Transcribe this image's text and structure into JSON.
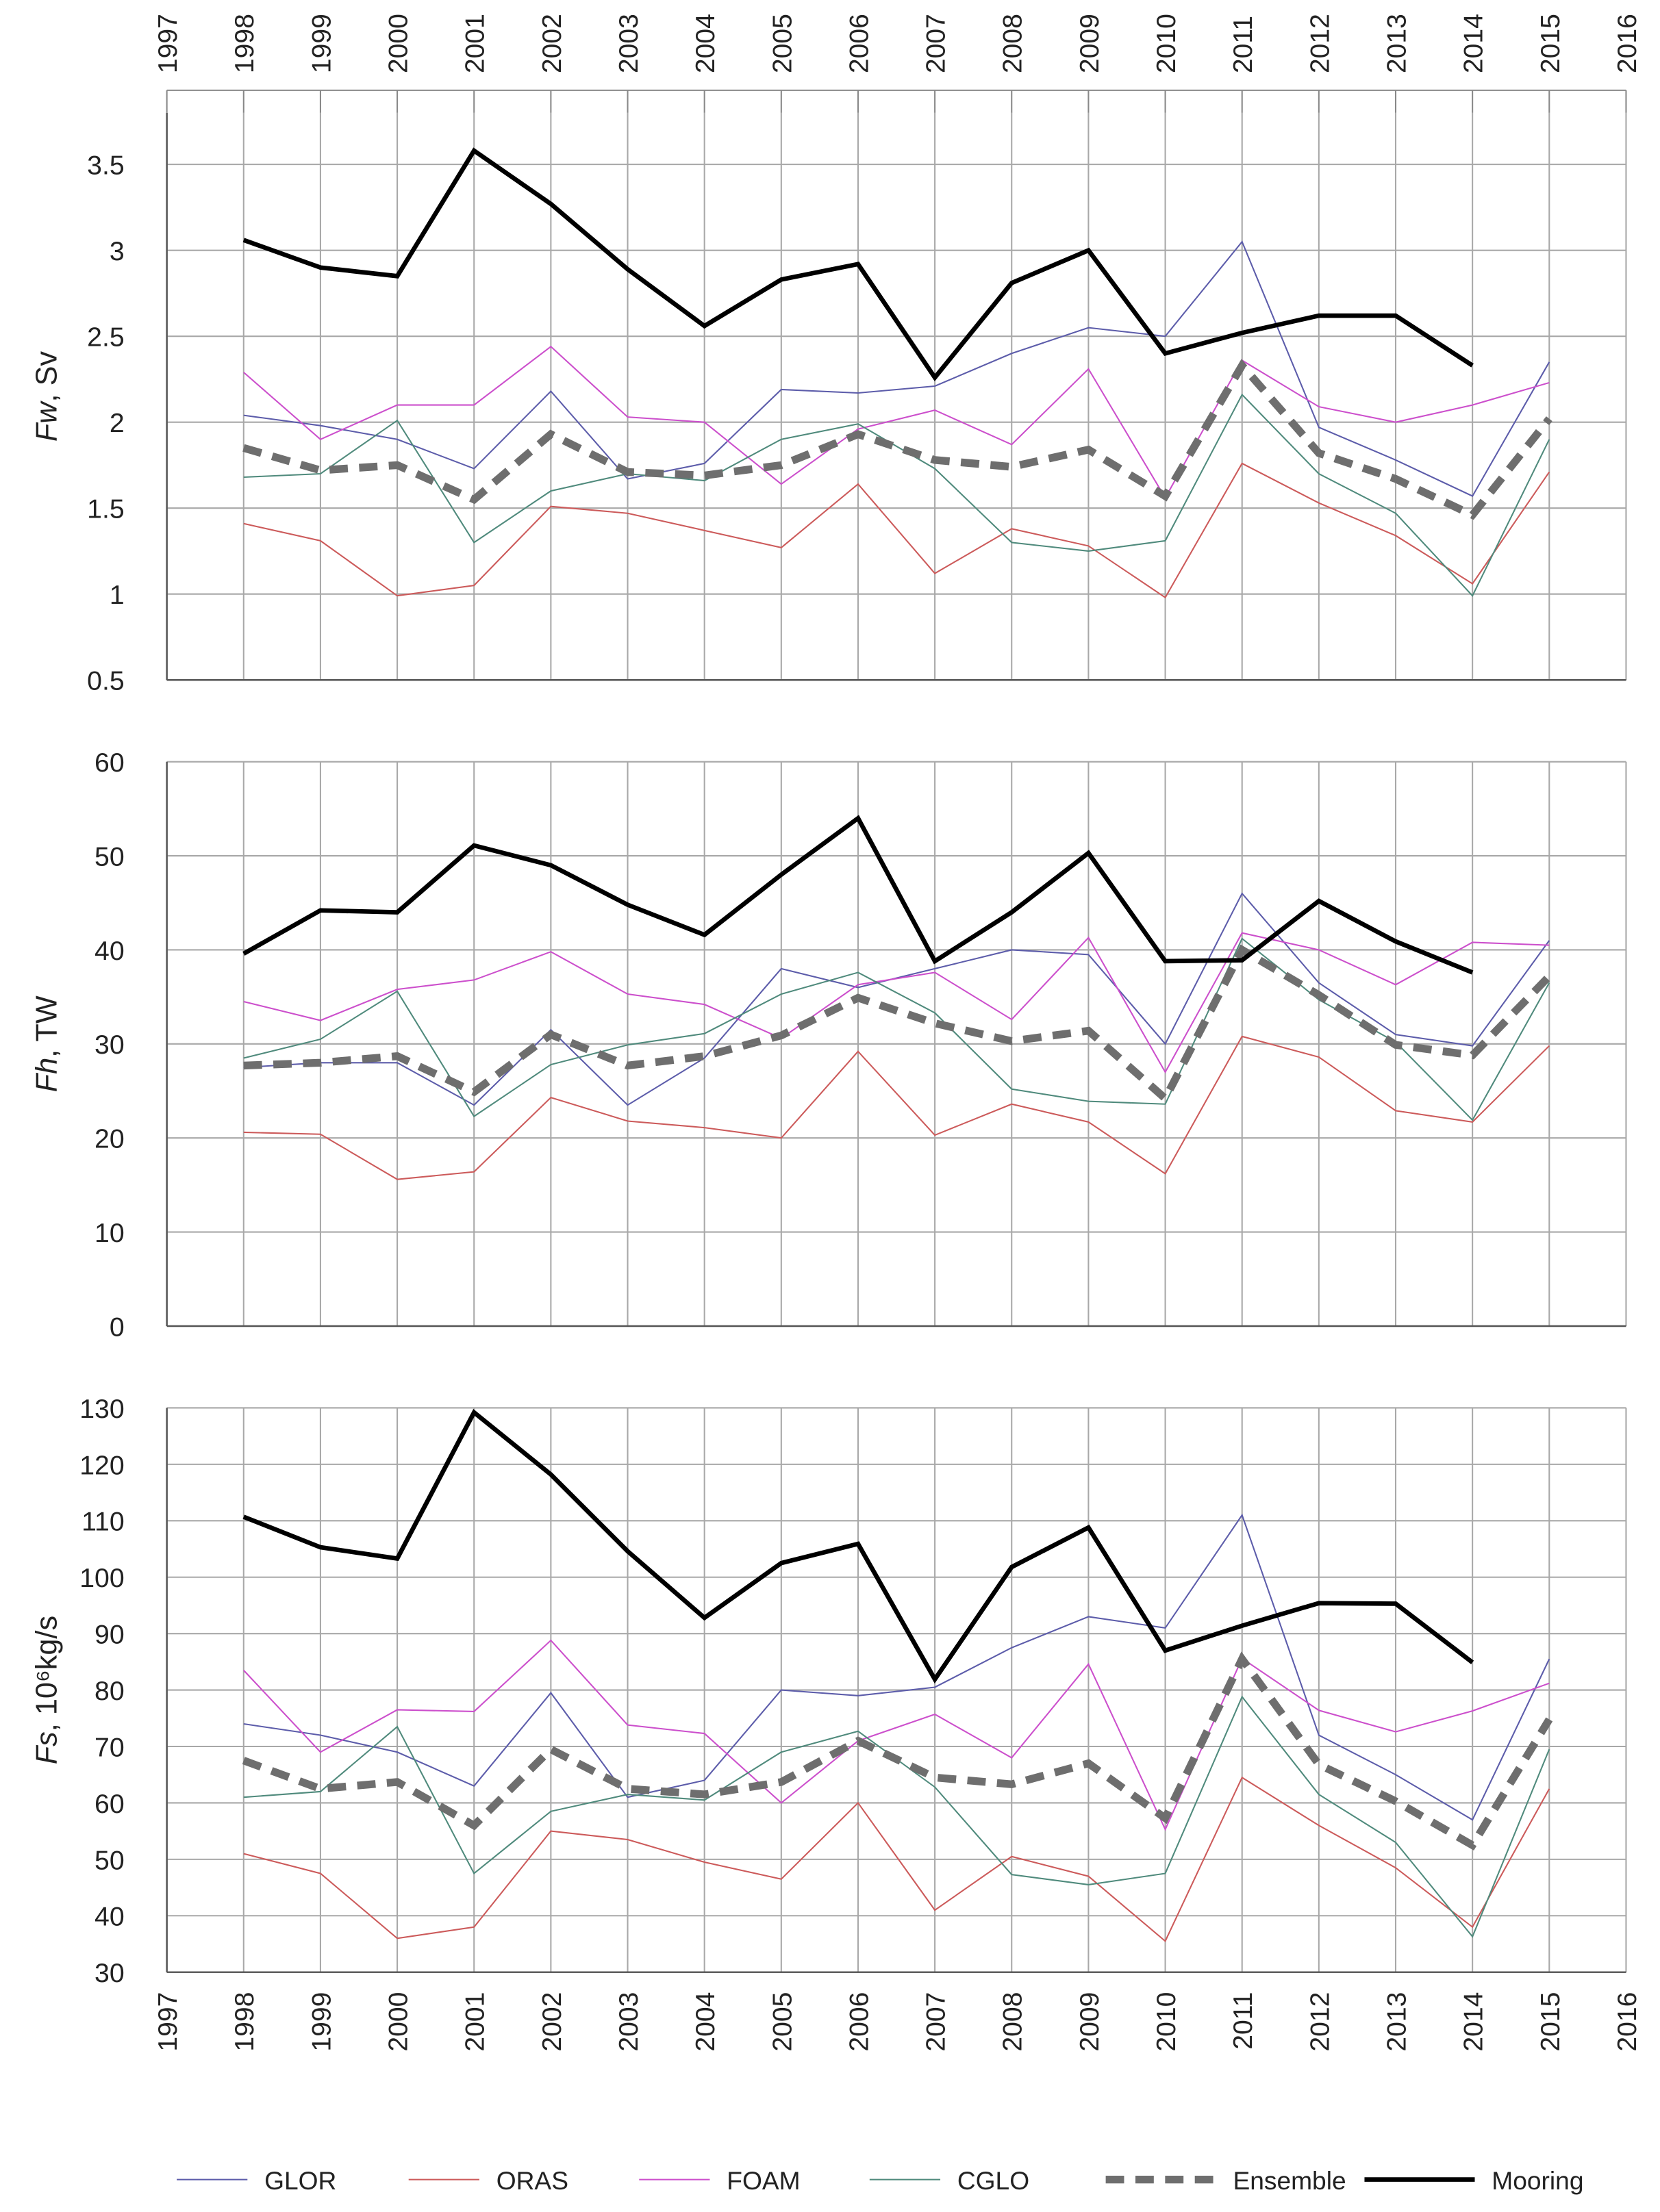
{
  "chart_data": [
    {
      "type": "line",
      "ylabel": "Fw, Sv",
      "x": [
        1998,
        1999,
        2000,
        2001,
        2002,
        2003,
        2004,
        2005,
        2006,
        2007,
        2008,
        2009,
        2010,
        2011,
        2012,
        2013,
        2014,
        2015
      ],
      "xlim": [
        1997,
        2016
      ],
      "xticks": [
        1997,
        1998,
        1999,
        2000,
        2001,
        2002,
        2003,
        2004,
        2005,
        2006,
        2007,
        2008,
        2009,
        2010,
        2011,
        2012,
        2013,
        2014,
        2015,
        2016
      ],
      "ylim": [
        0.5,
        3.8
      ],
      "yticks": [
        0.5,
        1,
        1.5,
        2,
        2.5,
        3,
        3.5
      ],
      "grid": true,
      "series": [
        {
          "name": "GLOR",
          "color": "#5c5caa",
          "style": "thin",
          "values": [
            2.04,
            1.98,
            1.9,
            1.73,
            2.18,
            1.67,
            1.76,
            2.19,
            2.17,
            2.21,
            2.4,
            2.55,
            2.5,
            3.05,
            1.97,
            1.78,
            1.57,
            2.35
          ]
        },
        {
          "name": "ORAS",
          "color": "#cc5a5a",
          "style": "thin",
          "values": [
            1.41,
            1.31,
            0.99,
            1.05,
            1.51,
            1.47,
            1.37,
            1.27,
            1.64,
            1.12,
            1.38,
            1.28,
            0.98,
            1.76,
            1.53,
            1.34,
            1.06,
            1.71
          ]
        },
        {
          "name": "FOAM",
          "color": "#cc4fcc",
          "style": "thin",
          "values": [
            2.29,
            1.9,
            2.1,
            2.1,
            2.44,
            2.03,
            2.0,
            1.64,
            1.96,
            2.07,
            1.87,
            2.31,
            1.56,
            2.36,
            2.09,
            2.0,
            2.1,
            2.23
          ]
        },
        {
          "name": "CGLO",
          "color": "#4f8a7c",
          "style": "thin",
          "values": [
            1.68,
            1.7,
            2.01,
            1.3,
            1.6,
            1.7,
            1.66,
            1.9,
            1.99,
            1.73,
            1.3,
            1.25,
            1.31,
            2.16,
            1.7,
            1.47,
            0.99,
            1.9
          ]
        },
        {
          "name": "Ensemble",
          "color": "#6e6e6e",
          "style": "dashed",
          "values": [
            1.85,
            1.72,
            1.75,
            1.55,
            1.93,
            1.71,
            1.69,
            1.75,
            1.93,
            1.78,
            1.74,
            1.84,
            1.57,
            2.33,
            1.82,
            1.67,
            1.46,
            2.02
          ]
        },
        {
          "name": "Mooring",
          "color": "#000000",
          "style": "thick",
          "values": [
            3.06,
            2.9,
            2.85,
            3.58,
            3.27,
            2.89,
            2.56,
            2.83,
            2.92,
            2.26,
            2.81,
            3.0,
            2.4,
            2.52,
            2.62,
            2.62,
            2.33,
            null
          ]
        }
      ]
    },
    {
      "type": "line",
      "ylabel": "Fh, TW",
      "x": [
        1998,
        1999,
        2000,
        2001,
        2002,
        2003,
        2004,
        2005,
        2006,
        2007,
        2008,
        2009,
        2010,
        2011,
        2012,
        2013,
        2014,
        2015
      ],
      "xlim": [
        1997,
        2016
      ],
      "xticks": [
        1997,
        1998,
        1999,
        2000,
        2001,
        2002,
        2003,
        2004,
        2005,
        2006,
        2007,
        2008,
        2009,
        2010,
        2011,
        2012,
        2013,
        2014,
        2015,
        2016
      ],
      "ylim": [
        0,
        60
      ],
      "yticks": [
        0,
        10,
        20,
        30,
        40,
        50,
        60
      ],
      "grid": true,
      "series": [
        {
          "color": "#5c5caa",
          "style": "thin",
          "values": [
            27.5,
            28.0,
            28.0,
            23.5,
            31.5,
            23.5,
            28.5,
            38.0,
            36.0,
            38.0,
            40.0,
            39.5,
            30.0,
            46.0,
            36.5,
            31.0,
            29.8,
            41.0
          ]
        },
        {
          "color": "#cc5a5a",
          "style": "thin",
          "values": [
            20.6,
            20.4,
            15.6,
            16.4,
            24.3,
            21.8,
            21.1,
            20.0,
            29.2,
            20.3,
            23.6,
            21.7,
            16.2,
            30.8,
            28.6,
            22.9,
            21.7,
            29.8
          ]
        },
        {
          "color": "#cc4fcc",
          "style": "thin",
          "values": [
            34.5,
            32.5,
            35.8,
            36.8,
            39.8,
            35.3,
            34.2,
            30.6,
            36.3,
            37.6,
            32.6,
            41.3,
            27.0,
            41.8,
            40.0,
            36.3,
            40.8,
            40.5
          ]
        },
        {
          "color": "#4f8a7c",
          "style": "thin",
          "values": [
            28.5,
            30.5,
            35.6,
            22.3,
            27.8,
            29.9,
            31.1,
            35.3,
            37.6,
            33.3,
            25.2,
            23.9,
            23.6,
            41.2,
            34.7,
            30.2,
            21.9,
            36.5
          ]
        },
        {
          "color": "#6e6e6e",
          "style": "dashed",
          "values": [
            27.7,
            28.0,
            28.7,
            24.9,
            31.0,
            27.7,
            28.7,
            30.9,
            34.9,
            32.2,
            30.3,
            31.4,
            24.2,
            40.0,
            35.2,
            29.9,
            28.8,
            37.2
          ]
        },
        {
          "color": "#000000",
          "style": "thick",
          "values": [
            39.6,
            44.2,
            44.0,
            51.1,
            49.0,
            44.8,
            41.6,
            48.0,
            54.0,
            38.8,
            44.0,
            50.3,
            38.8,
            38.9,
            45.2,
            40.9,
            37.6,
            null
          ]
        }
      ]
    },
    {
      "type": "line",
      "ylabel": "Fs, 10⁶kg/s",
      "x": [
        1998,
        1999,
        2000,
        2001,
        2002,
        2003,
        2004,
        2005,
        2006,
        2007,
        2008,
        2009,
        2010,
        2011,
        2012,
        2013,
        2014,
        2015
      ],
      "xlim": [
        1997,
        2016
      ],
      "xticks": [
        1997,
        1998,
        1999,
        2000,
        2001,
        2002,
        2003,
        2004,
        2005,
        2006,
        2007,
        2008,
        2009,
        2010,
        2011,
        2012,
        2013,
        2014,
        2015,
        2016
      ],
      "ylim": [
        30,
        130
      ],
      "yticks": [
        30,
        40,
        50,
        60,
        70,
        80,
        90,
        100,
        110,
        120,
        130
      ],
      "grid": true,
      "series": [
        {
          "color": "#5c5caa",
          "style": "thin",
          "values": [
            74.0,
            72.0,
            69.0,
            63.0,
            79.5,
            61.0,
            64.0,
            80.0,
            79.0,
            80.5,
            87.5,
            93.0,
            91.0,
            111.0,
            72.0,
            65.0,
            57.0,
            85.5
          ]
        },
        {
          "color": "#cc5a5a",
          "style": "thin",
          "values": [
            51.0,
            47.5,
            36.0,
            38.0,
            55.0,
            53.5,
            49.5,
            46.5,
            60.0,
            41.0,
            50.5,
            47.0,
            35.5,
            64.5,
            56.0,
            48.5,
            38.0,
            62.5
          ]
        },
        {
          "color": "#cc4fcc",
          "style": "thin",
          "values": [
            83.5,
            69.0,
            76.5,
            76.2,
            88.8,
            73.8,
            72.3,
            60.0,
            71.0,
            75.7,
            68.0,
            84.6,
            55.3,
            85.6,
            76.4,
            72.6,
            76.3,
            81.2
          ]
        },
        {
          "color": "#4f8a7c",
          "style": "thin",
          "values": [
            61.0,
            62.0,
            73.5,
            47.5,
            58.5,
            61.5,
            60.5,
            69.0,
            72.7,
            62.8,
            47.3,
            45.5,
            47.5,
            78.8,
            61.5,
            53.0,
            36.3,
            69.5
          ]
        },
        {
          "color": "#6e6e6e",
          "style": "dashed",
          "values": [
            67.5,
            62.5,
            63.7,
            56.0,
            69.5,
            62.5,
            61.5,
            63.7,
            71.0,
            64.5,
            63.3,
            67.0,
            57.3,
            85.5,
            66.8,
            60.3,
            52.5,
            74.8
          ]
        },
        {
          "color": "#000000",
          "style": "thick",
          "values": [
            110.7,
            105.3,
            103.3,
            129.2,
            118.2,
            104.6,
            92.8,
            102.5,
            105.9,
            81.9,
            101.8,
            108.8,
            87.0,
            91.4,
            95.4,
            95.3,
            84.9,
            null
          ]
        }
      ]
    }
  ]
}
